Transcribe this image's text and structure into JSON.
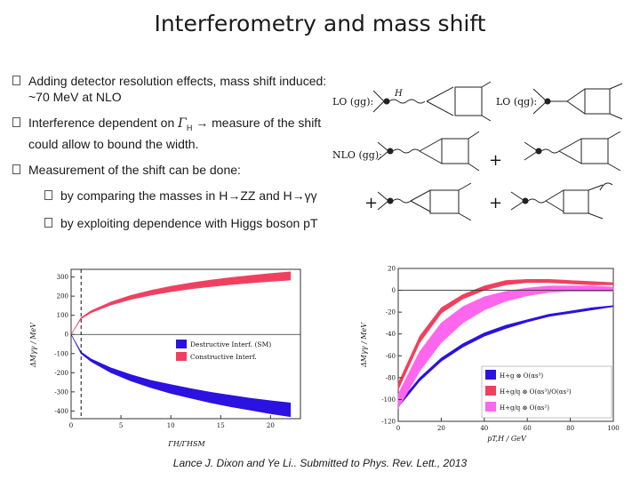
{
  "slide": {
    "title": "Interferometry and mass shift",
    "bullets": [
      {
        "text": "Adding detector resolution effects, mass shift induced: ~70 MeV at NLO"
      },
      {
        "text_before": "Interference dependent on ",
        "gamma": "Γ",
        "sub": "H",
        "arrow": "→",
        "text_after": " measure of the shift could allow to bound the width."
      },
      {
        "text": "Measurement of the shift can be done:"
      }
    ],
    "sub_bullets": [
      {
        "before": "by comparing the masses in H",
        "arrow": "→",
        "after": "ZZ and H",
        "arrow2": "→",
        "after2": "γγ"
      },
      {
        "text": "by exploiting dependence with Higgs boson pT"
      }
    ],
    "credit": "Lance J. Dixon and Ye Li.. Submitted to Phys. Rev. Lett., 2013"
  },
  "feynman": {
    "lo_label_1": "LO (gg):",
    "lo_label_2": "LO (qg):",
    "nlo_label": "NLO (gg):",
    "h_label": "H",
    "plus": "+"
  },
  "colors": {
    "destructive": "#2b12e0",
    "constructive": "#f04060",
    "magenta": "#ff66ee"
  },
  "chart_data": [
    {
      "type": "area",
      "xlabel": "ΓH/ΓHSM",
      "ylabel": "ΔMγγ / MeV",
      "xlim": [
        0,
        23
      ],
      "ylim": [
        -440,
        340
      ],
      "xticks": [
        0,
        5,
        10,
        15,
        20
      ],
      "yticks": [
        300,
        200,
        100,
        0,
        -100,
        -200,
        -300,
        -400
      ],
      "vline_x": 1,
      "legend_position": "center-right",
      "series": [
        {
          "name": "Destructive Interf. (SM)",
          "color": "#2b12e0",
          "x": [
            0,
            1,
            2,
            4,
            6,
            8,
            10,
            12,
            14,
            16,
            18,
            20,
            22
          ],
          "upper": [
            0,
            -92,
            -128,
            -175,
            -210,
            -240,
            -262,
            -283,
            -302,
            -318,
            -333,
            -346,
            -358
          ],
          "lower": [
            0,
            -100,
            -142,
            -200,
            -243,
            -278,
            -308,
            -333,
            -357,
            -378,
            -396,
            -414,
            -430
          ]
        },
        {
          "name": "Constructive Interf.",
          "color": "#f04060",
          "x": [
            0,
            1,
            2,
            4,
            6,
            8,
            10,
            12,
            14,
            16,
            18,
            20,
            22
          ],
          "upper": [
            0,
            88,
            123,
            170,
            204,
            230,
            252,
            269,
            284,
            297,
            308,
            318,
            327
          ],
          "lower": [
            0,
            82,
            113,
            154,
            183,
            205,
            223,
            238,
            250,
            260,
            269,
            277,
            284
          ]
        }
      ]
    },
    {
      "type": "area",
      "xlabel": "pT,H / GeV",
      "ylabel": "ΔMγγ / MeV",
      "xlim": [
        0,
        100
      ],
      "ylim": [
        -120,
        20
      ],
      "xticks": [
        0,
        20,
        40,
        60,
        80,
        100
      ],
      "yticks": [
        20,
        0,
        -20,
        -40,
        -60,
        -80,
        -100,
        -120
      ],
      "legend_position": "lower-right",
      "series": [
        {
          "name": "H+g ⊗ O(αs³)",
          "color": "#2b12e0",
          "x": [
            0,
            10,
            20,
            30,
            40,
            50,
            60,
            70,
            80,
            90,
            100
          ],
          "upper": [
            -104,
            -80,
            -62,
            -49,
            -39,
            -32,
            -27,
            -22,
            -19,
            -16,
            -14
          ],
          "lower": [
            -107,
            -83,
            -65,
            -52,
            -42,
            -35,
            -29,
            -24,
            -21,
            -18,
            -15
          ]
        },
        {
          "name": "H+g/q ⊗ O(αs³)/O(αs²)",
          "color": "#f04060",
          "x": [
            0,
            10,
            20,
            30,
            40,
            50,
            60,
            70,
            80,
            90,
            100
          ],
          "upper": [
            -85,
            -42,
            -16,
            -4,
            4,
            9,
            10,
            10,
            9,
            8,
            7
          ],
          "lower": [
            -91,
            -48,
            -21,
            -8,
            0,
            5,
            7,
            7,
            6,
            5,
            5
          ]
        },
        {
          "name": "H+g/q ⊗ O(αs²)",
          "color": "#ff66ee",
          "x": [
            0,
            10,
            20,
            30,
            40,
            50,
            60,
            70,
            80,
            90,
            100
          ],
          "upper": [
            -95,
            -56,
            -30,
            -15,
            -6,
            -1,
            2,
            4,
            4,
            4,
            3
          ],
          "lower": [
            -108,
            -74,
            -48,
            -30,
            -18,
            -10,
            -5,
            -2,
            -1,
            -1,
            -1
          ]
        }
      ]
    }
  ]
}
